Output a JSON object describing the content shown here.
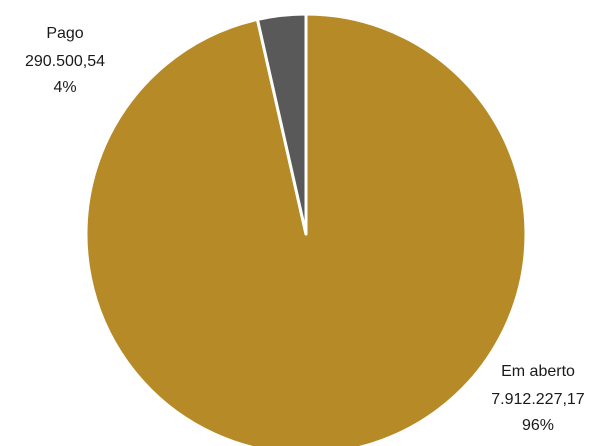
{
  "chart_data": {
    "type": "pie",
    "title": "",
    "slices": [
      {
        "name": "Em aberto",
        "value_label": "7.912.227,17",
        "percent_label": "96%",
        "value": 7912227.17,
        "color": "#b68b27"
      },
      {
        "name": "Pago",
        "value_label": "290.500,54",
        "percent_label": "4%",
        "value": 290500.54,
        "color": "#595959"
      }
    ],
    "start": "top",
    "direction": "clockwise",
    "slice_border_color": "#ffffff"
  }
}
